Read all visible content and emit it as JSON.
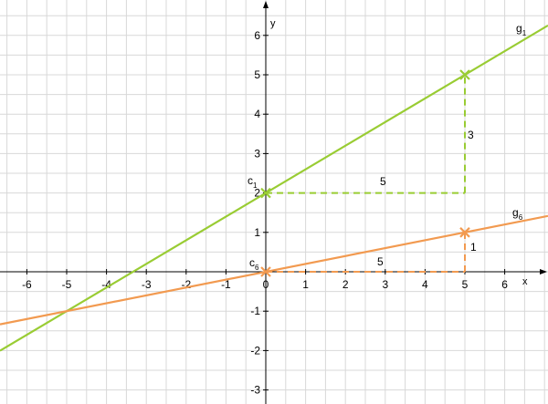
{
  "chart_data": {
    "type": "line",
    "title": "",
    "xlabel": "x",
    "ylabel": "y",
    "xlim": [
      -6.75,
      7.1
    ],
    "ylim": [
      -3.35,
      6.8
    ],
    "grid": true,
    "x_ticks": [
      -6,
      -5,
      -4,
      -3,
      -2,
      -1,
      0,
      1,
      2,
      3,
      4,
      5,
      6
    ],
    "y_ticks": [
      -3,
      -2,
      -1,
      0,
      1,
      2,
      3,
      4,
      5,
      6
    ],
    "x_tick_labels": [
      "-6",
      "-5",
      "-4",
      "-3",
      "-2",
      "-1",
      "0",
      "1",
      "2",
      "3",
      "4",
      "5",
      "6"
    ],
    "y_tick_labels": [
      "-3",
      "-2",
      "-1",
      "",
      "1",
      "2",
      "3",
      "4",
      "5",
      "6"
    ],
    "colors": {
      "g1": "#99cc33",
      "g6": "#f29a50",
      "grid": "#d8d8d8",
      "axis": "#000000"
    },
    "series": [
      {
        "name": "g",
        "subscript": "1",
        "slope": 0.6,
        "intercept": 2,
        "color": "#99cc33",
        "intercept_point": {
          "label": "c",
          "subscript": "1",
          "x": 0,
          "y": 2
        },
        "second_point": {
          "x": 5,
          "y": 5
        },
        "triangle": {
          "run": 5,
          "rise": 3,
          "run_label": "5",
          "rise_label": "3"
        }
      },
      {
        "name": "g",
        "subscript": "6",
        "slope": 0.2,
        "intercept": 0,
        "color": "#f29a50",
        "intercept_point": {
          "label": "c",
          "subscript": "6",
          "x": 0,
          "y": 0
        },
        "second_point": {
          "x": 5,
          "y": 1
        },
        "triangle": {
          "run": 5,
          "rise": 1,
          "run_label": "5",
          "rise_label": "1"
        }
      }
    ]
  }
}
